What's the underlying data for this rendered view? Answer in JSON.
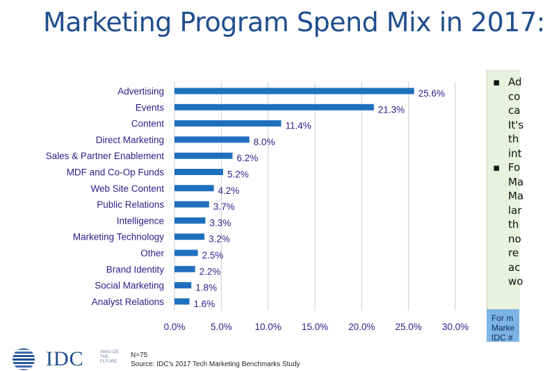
{
  "title": "Marketing Program Spend Mix in 2017:",
  "chart_data": {
    "type": "bar",
    "orientation": "horizontal",
    "categories": [
      "Advertising",
      "Events",
      "Content",
      "Direct Marketing",
      "Sales & Partner Enablement",
      "MDF and Co-Op Funds",
      "Web Site Content",
      "Public Relations",
      "Intelligence",
      "Marketing Technology",
      "Other",
      "Brand Identity",
      "Social Marketing",
      "Analyst Relations"
    ],
    "values": [
      25.6,
      21.3,
      11.4,
      8.0,
      6.2,
      5.2,
      4.2,
      3.7,
      3.3,
      3.2,
      2.5,
      2.2,
      1.8,
      1.6
    ],
    "value_labels": [
      "25.6%",
      "21.3%",
      "11.4%",
      "8.0%",
      "6.2%",
      "5.2%",
      "4.2%",
      "3.7%",
      "3.3%",
      "3.2%",
      "2.5%",
      "2.2%",
      "1.8%",
      "1.6%"
    ],
    "xlim": [
      0,
      30
    ],
    "x_ticks": [
      0,
      5,
      10,
      15,
      20,
      25,
      30
    ],
    "x_tick_labels": [
      "0.0%",
      "5.0%",
      "10.0%",
      "15.0%",
      "20.0%",
      "25.0%",
      "30.0%"
    ],
    "grid": "vertical",
    "bar_color": "#1f6fbf"
  },
  "side_panel": {
    "bullets": [
      "Ad",
      "co",
      "ca",
      "It's",
      "th",
      "int",
      "Fo",
      "Ma",
      "Ma",
      "lar",
      "th",
      "no",
      "re",
      "ac",
      "wo"
    ],
    "bullet_marks": [
      "▪",
      "▪"
    ],
    "footer_lines": [
      "For m",
      "Marke",
      "IDC #"
    ]
  },
  "logo": {
    "text": "IDC",
    "tagline": [
      "ANALYZE",
      "THE",
      "FUTURE"
    ]
  },
  "notes": {
    "n": "N=75",
    "source": "Source: IDC's 2017 Tech Marketing Benchmarks Study"
  },
  "colors": {
    "title": "#1f4e8c",
    "bar": "#1f6fbf",
    "label": "#2d1c87",
    "panel": "#eaf1dd",
    "panel_footer": "#7cb4e6"
  }
}
